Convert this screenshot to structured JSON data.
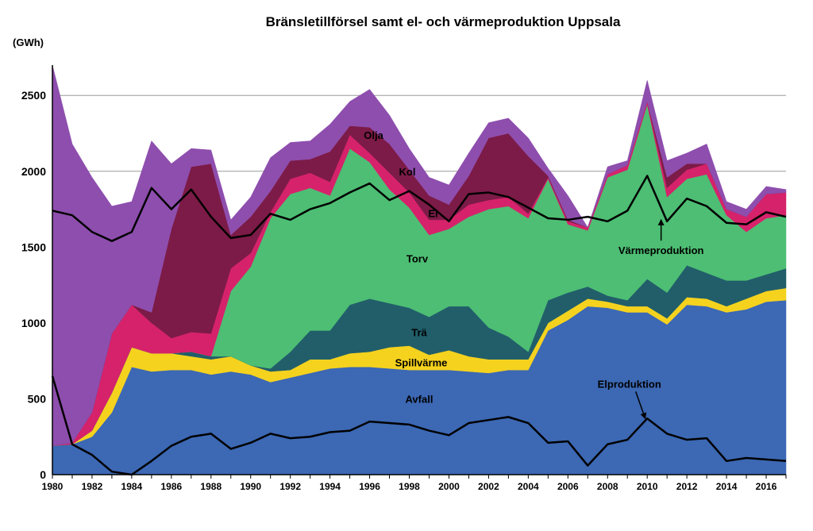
{
  "chart_data": {
    "type": "area",
    "title": "Bränsletillförsel samt el- och värmeproduktion Uppsala",
    "ylabel": "(GWh)",
    "xlabel": "",
    "ylim": [
      0,
      2700
    ],
    "xlim": [
      1980,
      2017
    ],
    "yticks": [
      0,
      500,
      1000,
      1500,
      2000,
      2500
    ],
    "xticks": [
      1980,
      1982,
      1984,
      1986,
      1988,
      1990,
      1992,
      1994,
      1996,
      1998,
      2000,
      2002,
      2004,
      2006,
      2008,
      2010,
      2012,
      2014,
      2016
    ],
    "grid": true,
    "x": [
      1980,
      1981,
      1982,
      1983,
      1984,
      1985,
      1986,
      1987,
      1988,
      1989,
      1990,
      1991,
      1992,
      1993,
      1994,
      1995,
      1996,
      1997,
      1998,
      1999,
      2000,
      2001,
      2002,
      2003,
      2004,
      2005,
      2006,
      2007,
      2008,
      2009,
      2010,
      2011,
      2012,
      2013,
      2014,
      2015,
      2016,
      2017
    ],
    "stack_order": [
      "Avfall",
      "Spillvärme",
      "Trä",
      "Torv",
      "El",
      "Kol",
      "Olja"
    ],
    "series": [
      {
        "name": "Avfall",
        "color": "#3c68b4",
        "values": [
          190,
          200,
          250,
          410,
          710,
          680,
          690,
          690,
          660,
          680,
          660,
          610,
          640,
          670,
          700,
          710,
          710,
          700,
          690,
          690,
          690,
          680,
          670,
          690,
          690,
          950,
          1020,
          1110,
          1100,
          1070,
          1070,
          990,
          1120,
          1110,
          1070,
          1090,
          1140,
          1150
        ]
      },
      {
        "name": "Spillvärme",
        "color": "#f5d21e",
        "values": [
          0,
          0,
          40,
          130,
          130,
          120,
          110,
          90,
          100,
          100,
          60,
          70,
          50,
          90,
          60,
          90,
          100,
          140,
          160,
          100,
          130,
          100,
          90,
          70,
          70,
          50,
          60,
          50,
          40,
          40,
          40,
          40,
          50,
          50,
          40,
          70,
          70,
          80
        ]
      },
      {
        "name": "Trä",
        "color": "#215e6a",
        "values": [
          0,
          0,
          0,
          0,
          0,
          0,
          0,
          30,
          20,
          0,
          0,
          20,
          120,
          190,
          190,
          320,
          350,
          290,
          250,
          250,
          290,
          330,
          210,
          150,
          50,
          150,
          120,
          80,
          40,
          40,
          180,
          170,
          210,
          170,
          170,
          120,
          110,
          130
        ]
      },
      {
        "name": "Torv",
        "color": "#4dbe73",
        "values": [
          0,
          0,
          0,
          0,
          0,
          0,
          0,
          0,
          0,
          430,
          650,
          990,
          1040,
          940,
          890,
          1030,
          900,
          750,
          660,
          540,
          510,
          590,
          780,
          860,
          880,
          800,
          450,
          370,
          780,
          860,
          1150,
          630,
          570,
          650,
          430,
          320,
          370,
          350
        ]
      },
      {
        "name": "El",
        "color": "#d6226b",
        "values": [
          0,
          10,
          120,
          390,
          280,
          200,
          100,
          130,
          150,
          150,
          90,
          40,
          100,
          100,
          90,
          90,
          60,
          110,
          100,
          100,
          60,
          80,
          60,
          60,
          30,
          10,
          20,
          20,
          20,
          30,
          20,
          60,
          60,
          70,
          40,
          100,
          160,
          150
        ]
      },
      {
        "name": "Kol",
        "color": "#7c1b47",
        "values": [
          0,
          0,
          0,
          0,
          0,
          70,
          720,
          1090,
          1120,
          220,
          240,
          140,
          120,
          90,
          200,
          60,
          170,
          190,
          150,
          160,
          100,
          190,
          410,
          420,
          380,
          10,
          10,
          0,
          0,
          0,
          0,
          70,
          40,
          0,
          0,
          0,
          0,
          0
        ]
      },
      {
        "name": "Olja",
        "color": "#8e4eae",
        "values": [
          2510,
          1970,
          1550,
          840,
          680,
          1130,
          430,
          120,
          90,
          100,
          130,
          220,
          120,
          120,
          180,
          160,
          250,
          190,
          140,
          120,
          130,
          150,
          100,
          100,
          120,
          50,
          160,
          0,
          50,
          30,
          140,
          110,
          70,
          130,
          50,
          50,
          50,
          20
        ]
      }
    ],
    "lines": [
      {
        "name": "Värmeproduktion",
        "color": "#000000",
        "values": [
          1740,
          1710,
          1600,
          1540,
          1600,
          1890,
          1750,
          1880,
          1700,
          1560,
          1580,
          1720,
          1680,
          1750,
          1790,
          1860,
          1920,
          1810,
          1870,
          1780,
          1670,
          1850,
          1860,
          1830,
          1760,
          1690,
          1680,
          1700,
          1670,
          1740,
          1970,
          1670,
          1820,
          1770,
          1660,
          1650,
          1730,
          1700
        ]
      },
      {
        "name": "Elproduktion",
        "color": "#000000",
        "values": [
          650,
          200,
          130,
          20,
          0,
          90,
          190,
          250,
          270,
          170,
          210,
          270,
          240,
          250,
          280,
          290,
          350,
          340,
          330,
          290,
          260,
          340,
          360,
          380,
          340,
          210,
          220,
          60,
          200,
          230,
          370,
          270,
          230,
          240,
          90,
          110,
          100,
          90
        ]
      }
    ],
    "area_labels": [
      {
        "text": "Olja",
        "x": 1996.2,
        "y": 2240
      },
      {
        "text": "Kol",
        "x": 1997.9,
        "y": 2000
      },
      {
        "text": "El",
        "x": 1999.2,
        "y": 1725
      },
      {
        "text": "Torv",
        "x": 1998.4,
        "y": 1425
      },
      {
        "text": "Trä",
        "x": 1998.5,
        "y": 940
      },
      {
        "text": "Spillvärme",
        "x": 1998.6,
        "y": 740
      },
      {
        "text": "Avfall",
        "x": 1998.5,
        "y": 500
      }
    ],
    "annotations": [
      {
        "text": "Värmeproduktion",
        "x": 2010.7,
        "y": 1480,
        "arrow_to": [
          2010.7,
          1680
        ]
      },
      {
        "text": "Elproduktion",
        "x": 2009.1,
        "y": 600,
        "arrow_to": [
          2009.9,
          370
        ]
      }
    ]
  }
}
